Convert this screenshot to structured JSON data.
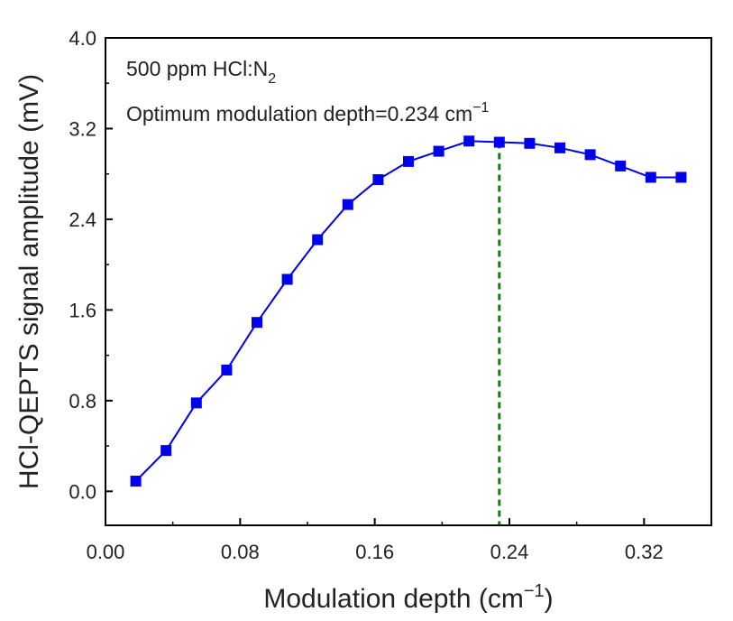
{
  "chart_data": {
    "type": "line",
    "title": "",
    "xlabel": "Modulation depth (cm",
    "xlabel_sup": "−1",
    "xlabel_close": ")",
    "ylabel": "HCl-QEPTS signal amplitude (mV)",
    "xlim": [
      0.0,
      0.36
    ],
    "ylim": [
      -0.3,
      4.0
    ],
    "x_ticks": [
      0.0,
      0.08,
      0.16,
      0.24,
      0.32
    ],
    "x_tick_labels": [
      "0.00",
      "0.08",
      "0.16",
      "0.24",
      "0.32"
    ],
    "y_ticks": [
      0.0,
      0.8,
      1.6,
      2.4,
      3.2,
      4.0
    ],
    "y_tick_labels": [
      "0.0",
      "0.8",
      "1.6",
      "2.4",
      "3.2",
      "4.0"
    ],
    "grid": false,
    "series": [
      {
        "name": "HCl-QEPTS signal",
        "color": "#0000ee",
        "marker": "square",
        "x": [
          0.018,
          0.036,
          0.054,
          0.072,
          0.09,
          0.108,
          0.126,
          0.144,
          0.162,
          0.18,
          0.198,
          0.216,
          0.234,
          0.252,
          0.27,
          0.288,
          0.306,
          0.324,
          0.342
        ],
        "y": [
          0.09,
          0.36,
          0.78,
          1.07,
          1.49,
          1.87,
          2.22,
          2.53,
          2.75,
          2.91,
          3.0,
          3.09,
          3.08,
          3.07,
          3.03,
          2.97,
          2.87,
          2.77,
          2.77
        ]
      }
    ],
    "optimum_line": {
      "x": 0.234,
      "color": "#1a7a1a",
      "style": "dashed"
    },
    "annotations": {
      "line1_main": "500 ppm HCl:N",
      "line1_sub": "2",
      "line2_main": "Optimum modulation depth=0.234 cm",
      "line2_sup": "−1"
    }
  }
}
